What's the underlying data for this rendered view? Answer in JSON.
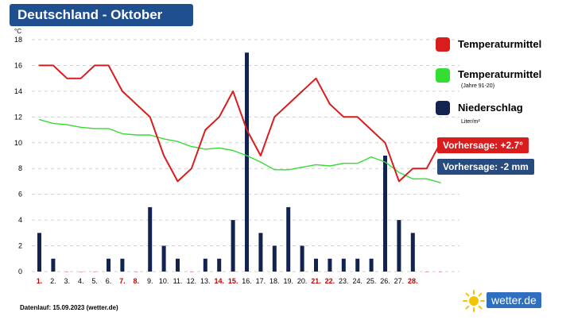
{
  "title": "Deutschland - Oktober",
  "unit": "°C",
  "legend": {
    "temp": {
      "label": "Temperaturmittel",
      "color": "#d91c1c"
    },
    "temp_avg": {
      "label": "Temperaturmittel",
      "sub": "(Jahre 91-20)",
      "color": "#33dd33"
    },
    "precip": {
      "label": "Niederschlag",
      "sub": "Liter/m²",
      "color": "#13234f"
    }
  },
  "forecast_temp": "Vorhersage: +2.7°",
  "forecast_precip": "Vorhersage: -2 mm",
  "footer": "Datenlauf: 15.09.2023 (wetter.de)",
  "logo": "wetter.de",
  "chart_data": {
    "type": "line",
    "x": [
      "1.",
      "2.",
      "3.",
      "4.",
      "5.",
      "6.",
      "7.",
      "8.",
      "9.",
      "10.",
      "11.",
      "12.",
      "13.",
      "14.",
      "15.",
      "16.",
      "17.",
      "18.",
      "19.",
      "20.",
      "21.",
      "22.",
      "23.",
      "24.",
      "25.",
      "26.",
      "27.",
      "28.",
      "",
      ""
    ],
    "highlight_days": [
      "1.",
      "7.",
      "8.",
      "14.",
      "15.",
      "21.",
      "22.",
      "28."
    ],
    "yticks": [
      0,
      2,
      4,
      6,
      8,
      10,
      12,
      14,
      16,
      18
    ],
    "ylim": [
      0,
      18
    ],
    "ylabel": "°C",
    "series": [
      {
        "name": "Temperaturmittel",
        "type": "line",
        "color": "#d91c1c",
        "values": [
          16,
          16,
          15,
          15,
          16,
          16,
          14,
          13,
          12,
          9,
          7,
          8,
          11,
          12,
          14,
          11,
          9,
          12,
          13,
          14,
          15,
          13,
          12,
          12,
          11,
          10,
          7,
          8,
          8,
          10
        ]
      },
      {
        "name": "Temperaturmittel (Jahre 91-20)",
        "type": "line",
        "color": "#33dd33",
        "values": [
          11.8,
          11.5,
          11.4,
          11.2,
          11.1,
          11.1,
          10.7,
          10.6,
          10.6,
          10.3,
          10.1,
          9.7,
          9.5,
          9.6,
          9.4,
          9.0,
          8.5,
          7.9,
          7.9,
          8.1,
          8.3,
          8.2,
          8.4,
          8.4,
          8.9,
          8.5,
          7.7,
          7.2,
          7.2,
          6.9
        ]
      },
      {
        "name": "Niederschlag",
        "type": "bar",
        "color": "#13234f",
        "values": [
          3,
          1,
          0,
          0,
          0,
          1,
          1,
          0,
          5,
          2,
          1,
          0,
          1,
          1,
          4,
          17,
          3,
          2,
          5,
          2,
          1,
          1,
          1,
          1,
          1,
          9,
          4,
          3,
          0,
          0
        ]
      }
    ]
  }
}
